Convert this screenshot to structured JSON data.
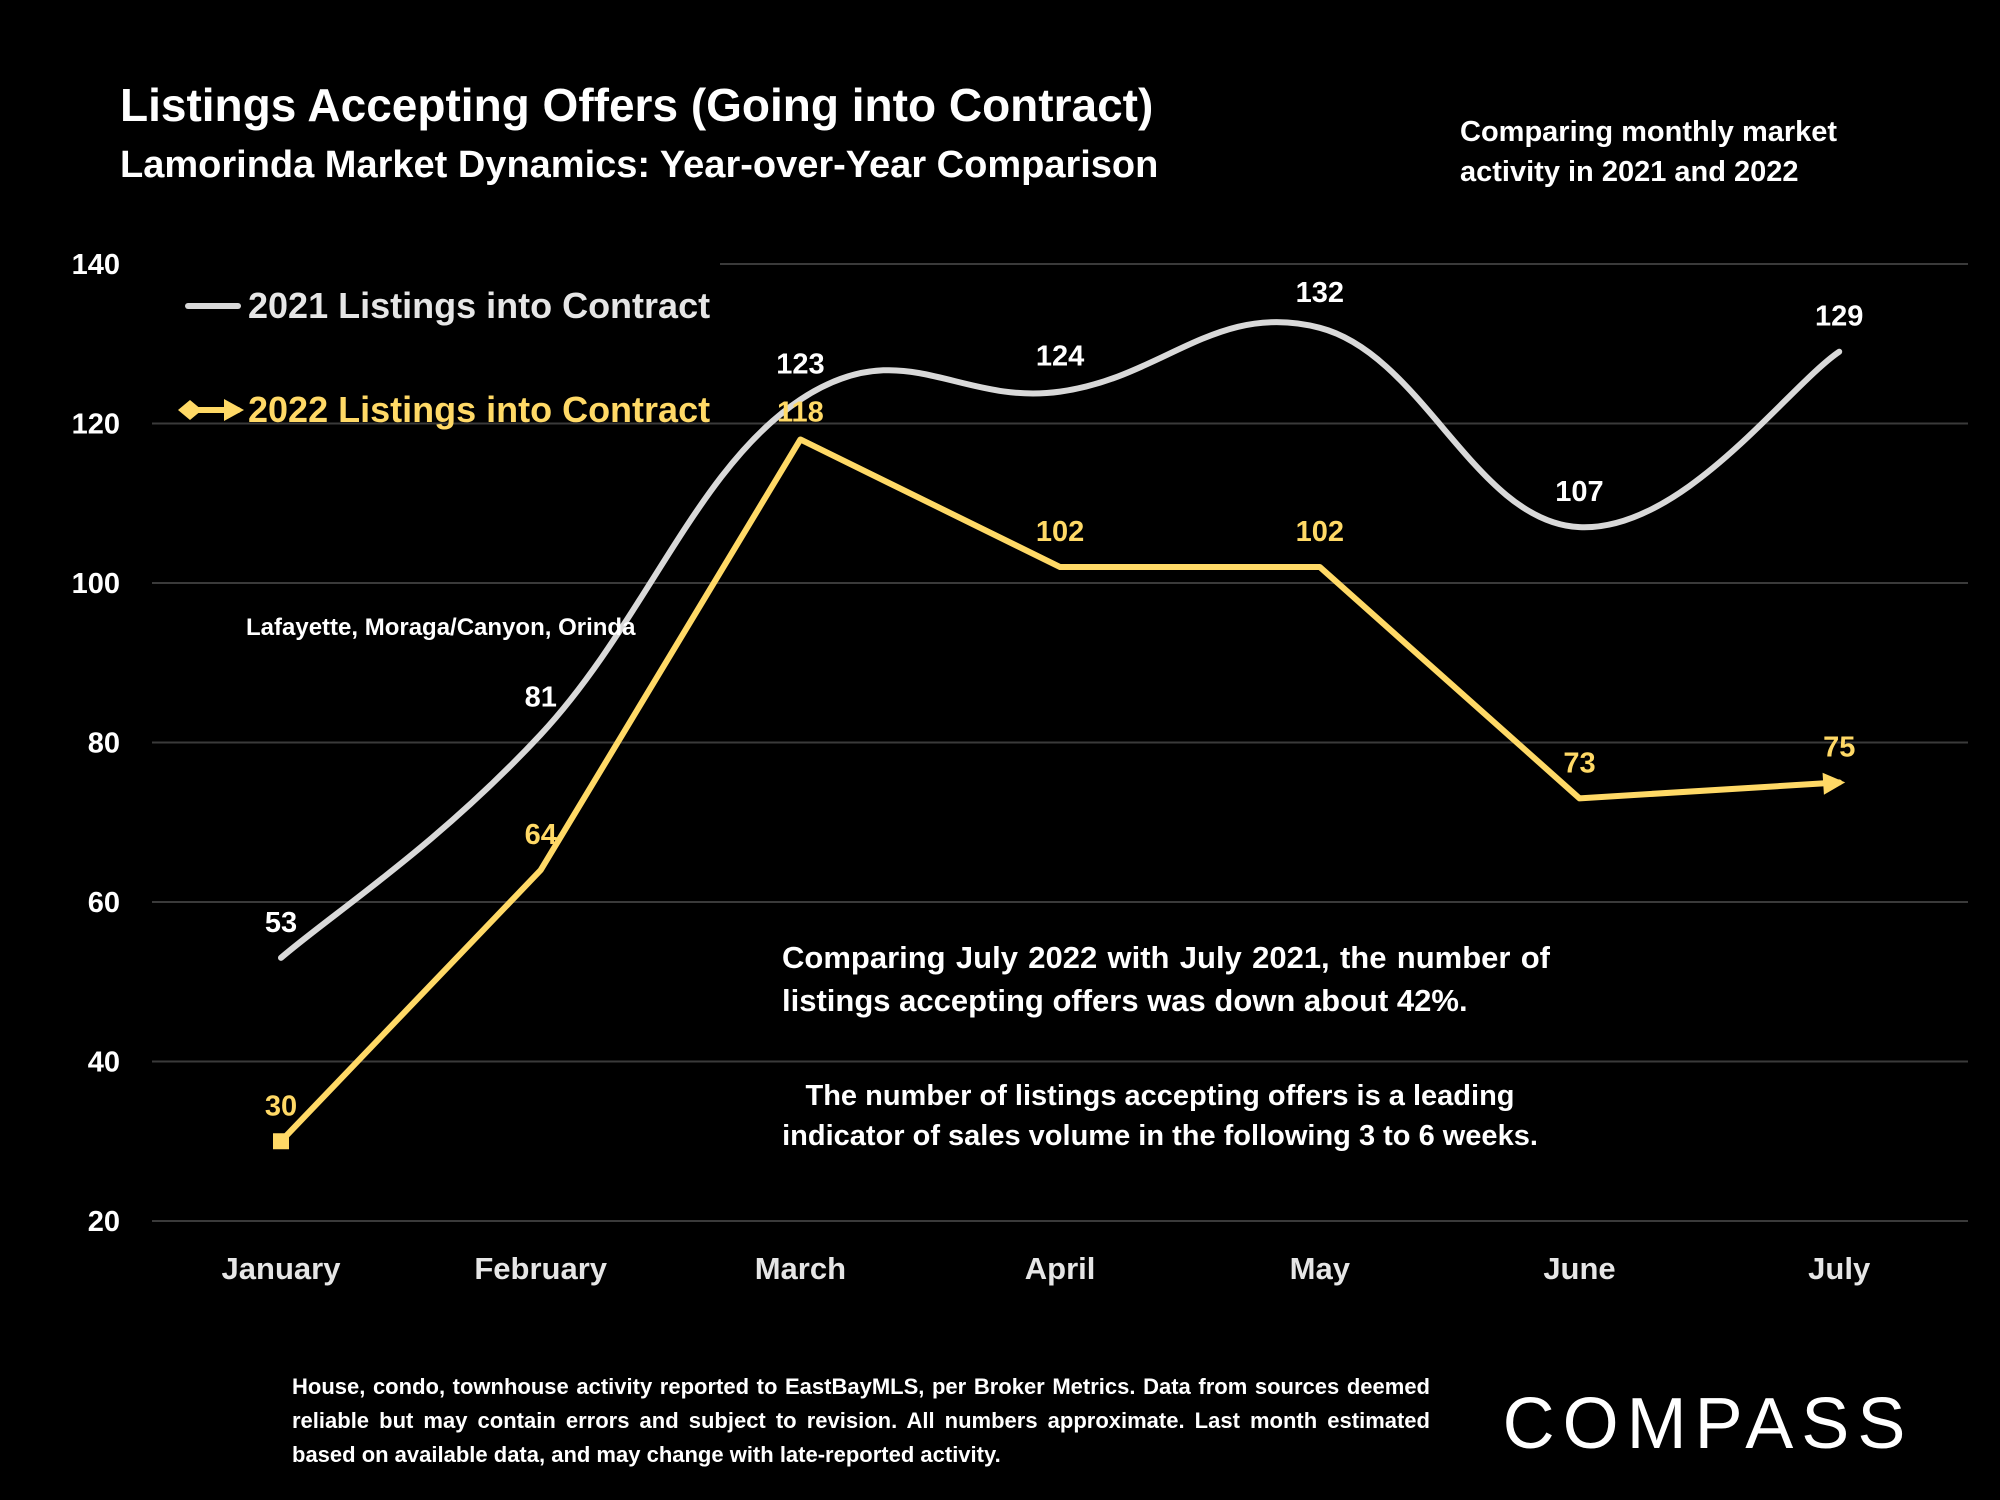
{
  "header": {
    "title": "Listings Accepting Offers (Going into Contract)",
    "subtitle": "Lamorinda Market Dynamics: Year-over-Year Comparison",
    "side_note": "Comparing monthly market activity in 2021 and 2022"
  },
  "annotations": {
    "region": "Lafayette, Moraga/Canyon, Orinda",
    "comparison": "Comparing July 2022 with July 2021, the number of listings accepting offers was down about 42%.",
    "leading_indicator": "The number of listings accepting offers is a leading indicator of sales volume in the following 3 to 6 weeks."
  },
  "footnote": "House, condo, townhouse activity reported to EastBayMLS, per Broker Metrics. Data from sources deemed reliable but may contain errors and subject to revision. All numbers approximate. Last month estimated based on available data, and may change with late-reported activity.",
  "logo": {
    "text": "COMPASS"
  },
  "colors": {
    "background": "#000000",
    "series_2021": "#d9d9d9",
    "series_2022": "#ffd966",
    "grid": "#3a3a3a",
    "text": "#ffffff"
  },
  "chart_data": {
    "type": "line",
    "categories": [
      "January",
      "February",
      "March",
      "April",
      "May",
      "June",
      "July"
    ],
    "series": [
      {
        "name": "2021 Listings into Contract",
        "values": [
          53,
          81,
          123,
          124,
          132,
          107,
          129
        ],
        "color": "#d9d9d9",
        "smooth": true
      },
      {
        "name": "2022 Listings into Contract",
        "values": [
          30,
          64,
          118,
          102,
          102,
          73,
          75
        ],
        "color": "#ffd966",
        "smooth": false
      }
    ],
    "ylim": [
      20,
      140
    ],
    "yticks": [
      20,
      40,
      60,
      80,
      100,
      120,
      140
    ],
    "grid": true,
    "legend": "top-left"
  }
}
